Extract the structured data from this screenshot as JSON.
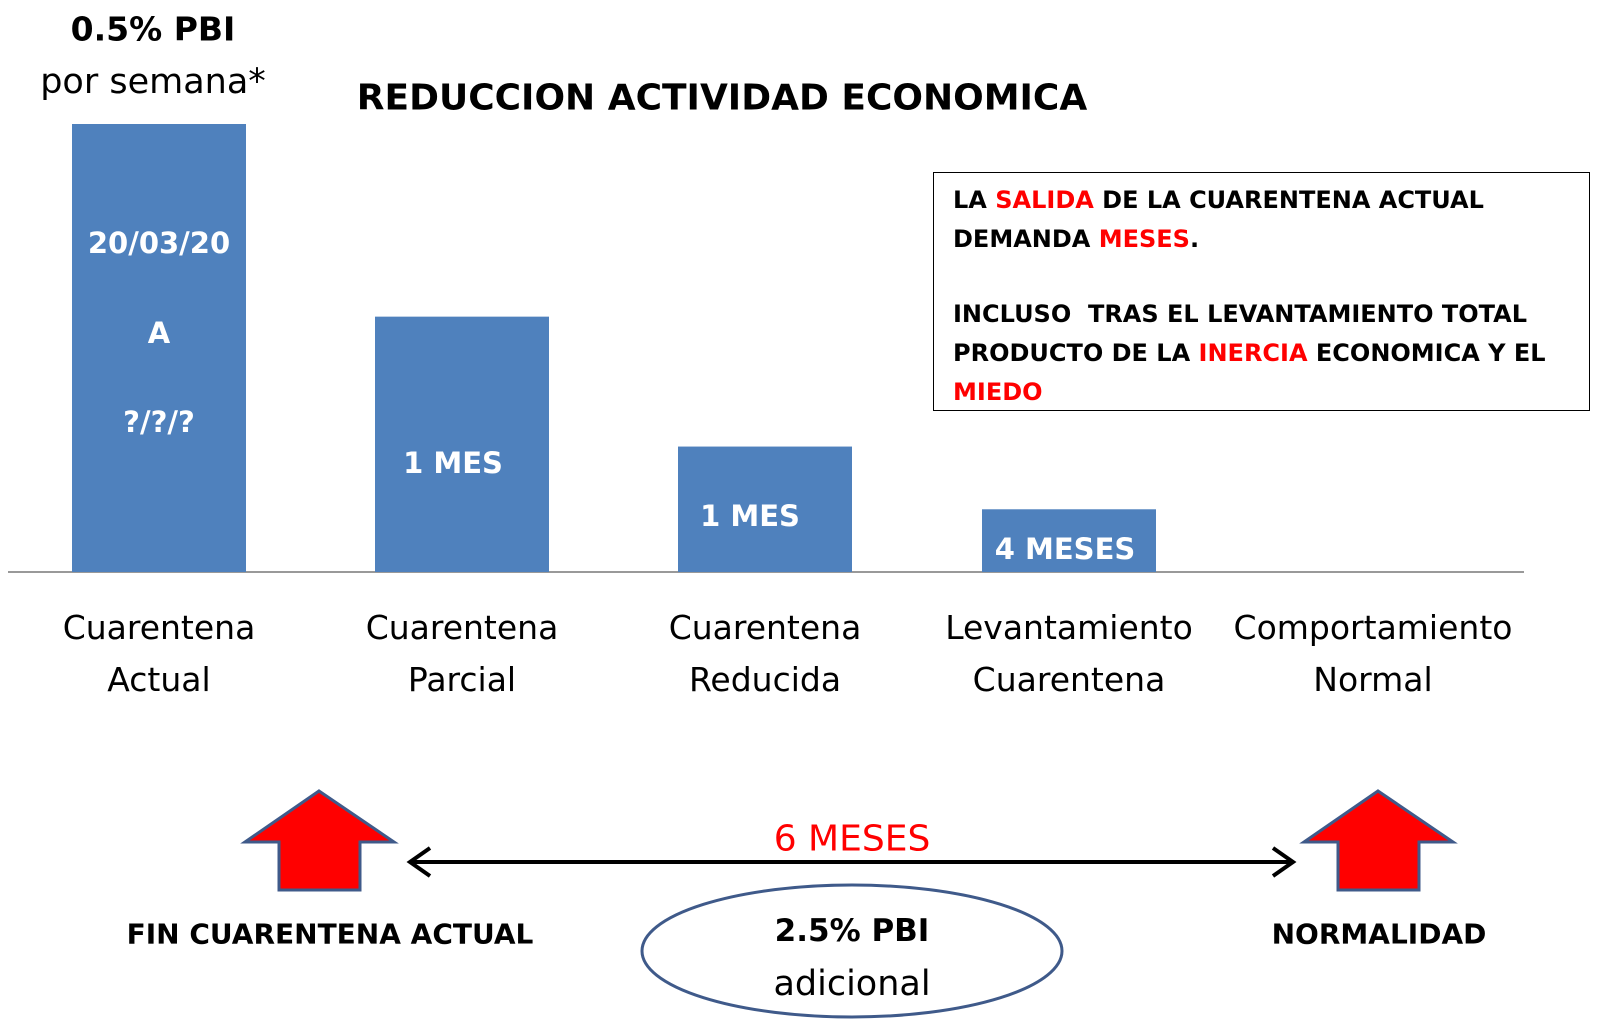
{
  "chart_data": {
    "type": "bar",
    "title": "REDUCCION ACTIVIDAD ECONOMICA",
    "header": [
      "0.5% PBI",
      "por semana*"
    ],
    "categories": [
      "Cuarentena\nActual",
      "Cuarentena\nParcial",
      "Cuarentena\nReducida",
      "Levantamiento\nCuarentena",
      "Comportamiento\nNormal"
    ],
    "values": [
      100,
      57,
      28,
      14,
      null
    ],
    "color": "#4f81bd",
    "bar_labels": [
      [
        "20/03/20",
        "A",
        "?/?/?"
      ],
      [
        "1 MES"
      ],
      [
        "1 MES"
      ],
      [
        "4 MESES"
      ],
      []
    ]
  },
  "note": {
    "paragraphs": [
      [
        {
          "text": "LA "
        },
        {
          "text": "SALIDA",
          "color": "#ff0000"
        },
        {
          "text": " DE LA CUARENTENA ACTUAL DEMANDA "
        },
        {
          "text": "MESES",
          "color": "#ff0000"
        },
        {
          "text": "."
        }
      ],
      [
        {
          "text": "INCLUSO  TRAS EL LEVANTAMIENTO TOTAL PRODUCTO DE LA "
        },
        {
          "text": "INERCIA",
          "color": "#ff0000"
        },
        {
          "text": " ECONOMICA Y EL "
        },
        {
          "text": "MIEDO",
          "color": "#ff0000"
        }
      ]
    ]
  },
  "timeline": {
    "start": "FIN CUARENTENA ACTUAL",
    "end": "NORMALIDAD",
    "duration": "6 MESES",
    "cost": [
      "2.5% PBI",
      "adicional"
    ]
  }
}
